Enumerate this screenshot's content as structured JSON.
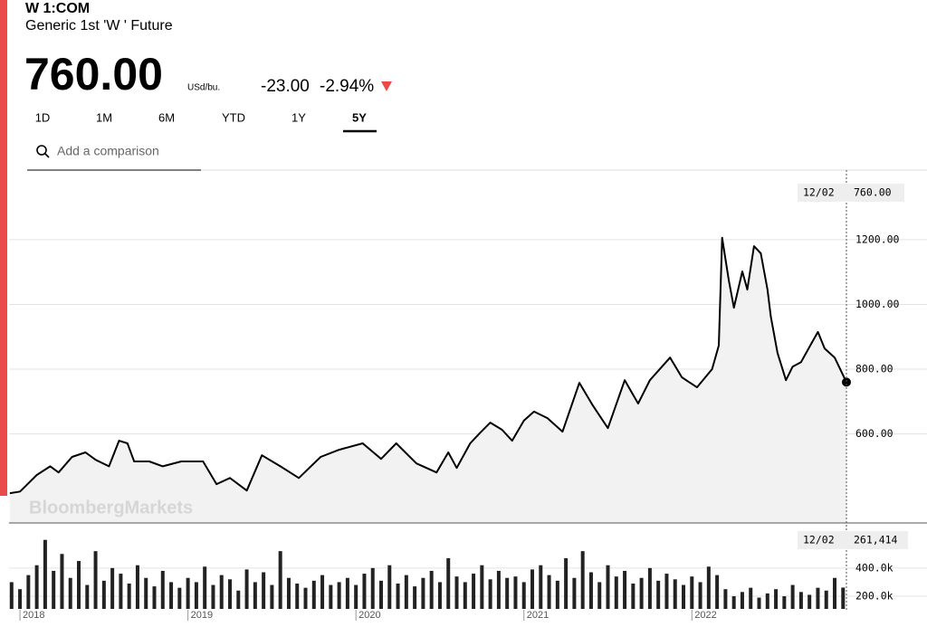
{
  "header": {
    "ticker": "W 1:COM",
    "name": "Generic 1st 'W ' Future",
    "price": "760.00",
    "unit": "USd/bu.",
    "change": "-23.00",
    "change_pct": "-2.94%",
    "tabs": [
      "1D",
      "1M",
      "6M",
      "YTD",
      "1Y",
      "5Y"
    ],
    "search_placeholder": "Add a comparison",
    "watermark": "BloombergMarkets"
  },
  "chart_data": [
    {
      "type": "line",
      "color": "#000000",
      "area_color": "#f2f2f2",
      "x": [
        2017.94,
        2018.0,
        2018.1,
        2018.18,
        2018.23,
        2018.31,
        2018.39,
        2018.45,
        2018.53,
        2018.59,
        2018.64,
        2018.68,
        2018.77,
        2018.85,
        2018.96,
        2019.09,
        2019.17,
        2019.25,
        2019.35,
        2019.44,
        2019.55,
        2019.66,
        2019.79,
        2019.9,
        2020.04,
        2020.15,
        2020.24,
        2020.36,
        2020.48,
        2020.55,
        2020.6,
        2020.68,
        2020.74,
        2020.8,
        2020.87,
        2020.93,
        2021.0,
        2021.06,
        2021.14,
        2021.23,
        2021.33,
        2021.41,
        2021.5,
        2021.6,
        2021.68,
        2021.75,
        2021.87,
        2021.94,
        2022.03,
        2022.12,
        2022.16,
        2022.18,
        2022.22,
        2022.25,
        2022.3,
        2022.33,
        2022.37,
        2022.41,
        2022.45,
        2022.47,
        2022.51,
        2022.56,
        2022.6,
        2022.65,
        2022.71,
        2022.75,
        2022.79,
        2022.85,
        2022.92
      ],
      "values": [
        417,
        422,
        473,
        500,
        481,
        529,
        543,
        520,
        500,
        579,
        571,
        515,
        515,
        500,
        515,
        515,
        445,
        464,
        425,
        534,
        500,
        464,
        529,
        551,
        571,
        523,
        571,
        509,
        481,
        543,
        495,
        571,
        604,
        635,
        613,
        579,
        641,
        669,
        649,
        607,
        758,
        688,
        618,
        766,
        694,
        766,
        836,
        775,
        744,
        800,
        873,
        1206,
        1074,
        990,
        1102,
        1046,
        1180,
        1158,
        1046,
        962,
        850,
        766,
        808,
        822,
        878,
        915,
        864,
        836,
        760
      ],
      "xlim": [
        2017.935,
        2022.92
      ],
      "xticks": [
        2018,
        2019,
        2020,
        2021,
        2022
      ],
      "ylim": [
        325,
        1415
      ],
      "yticks": [
        {
          "value": 600,
          "label": "600.00"
        },
        {
          "value": 800,
          "label": "800.00"
        },
        {
          "value": 1000,
          "label": "1000.00"
        },
        {
          "value": 1200,
          "label": "1200.00"
        }
      ],
      "grid": true,
      "crosshair": {
        "date": "12/02",
        "label": "760.00"
      }
    },
    {
      "type": "bar",
      "color": "#222222",
      "x": [
        2017.95,
        2018.0,
        2018.05,
        2018.1,
        2018.15,
        2018.2,
        2018.25,
        2018.3,
        2018.35,
        2018.4,
        2018.45,
        2018.5,
        2018.55,
        2018.6,
        2018.65,
        2018.7,
        2018.75,
        2018.8,
        2018.85,
        2018.9,
        2018.95,
        2019.0,
        2019.05,
        2019.1,
        2019.15,
        2019.2,
        2019.25,
        2019.3,
        2019.35,
        2019.4,
        2019.45,
        2019.5,
        2019.55,
        2019.6,
        2019.65,
        2019.7,
        2019.75,
        2019.8,
        2019.85,
        2019.9,
        2019.95,
        2020.0,
        2020.05,
        2020.1,
        2020.15,
        2020.2,
        2020.25,
        2020.3,
        2020.35,
        2020.4,
        2020.45,
        2020.5,
        2020.55,
        2020.6,
        2020.65,
        2020.7,
        2020.75,
        2020.8,
        2020.85,
        2020.9,
        2020.95,
        2021.0,
        2021.05,
        2021.1,
        2021.15,
        2021.2,
        2021.25,
        2021.3,
        2021.35,
        2021.4,
        2021.45,
        2021.5,
        2021.55,
        2021.6,
        2021.65,
        2021.7,
        2021.75,
        2021.8,
        2021.85,
        2021.9,
        2021.95,
        2022.0,
        2022.05,
        2022.1,
        2022.15,
        2022.2,
        2022.25,
        2022.3,
        2022.35,
        2022.4,
        2022.45,
        2022.5,
        2022.55,
        2022.6,
        2022.65,
        2022.7,
        2022.75,
        2022.8,
        2022.85,
        2022.9
      ],
      "values": [
        300000,
        250000,
        350000,
        420000,
        600000,
        380000,
        500000,
        330000,
        450000,
        280000,
        520000,
        310000,
        400000,
        360000,
        290000,
        420000,
        330000,
        270000,
        380000,
        300000,
        260000,
        330000,
        300000,
        410000,
        280000,
        350000,
        320000,
        240000,
        390000,
        300000,
        370000,
        280000,
        520000,
        330000,
        290000,
        260000,
        310000,
        350000,
        280000,
        300000,
        330000,
        280000,
        360000,
        400000,
        310000,
        420000,
        290000,
        350000,
        270000,
        330000,
        380000,
        300000,
        470000,
        340000,
        300000,
        360000,
        420000,
        320000,
        380000,
        330000,
        340000,
        300000,
        390000,
        420000,
        350000,
        310000,
        470000,
        330000,
        520000,
        370000,
        300000,
        420000,
        340000,
        380000,
        290000,
        330000,
        400000,
        310000,
        360000,
        320000,
        280000,
        340000,
        300000,
        410000,
        350000,
        250000,
        200000,
        230000,
        260000,
        190000,
        220000,
        250000,
        200000,
        280000,
        230000,
        210000,
        260000,
        240000,
        330000,
        261414
      ],
      "xlim": [
        2017.935,
        2022.92
      ],
      "ylim": [
        110000,
        720000
      ],
      "yticks": [
        {
          "value": 200000,
          "label": "200.0k"
        },
        {
          "value": 400000,
          "label": "400.0k"
        }
      ],
      "grid": true,
      "crosshair": {
        "date": "12/02",
        "label": "261,414"
      }
    }
  ]
}
